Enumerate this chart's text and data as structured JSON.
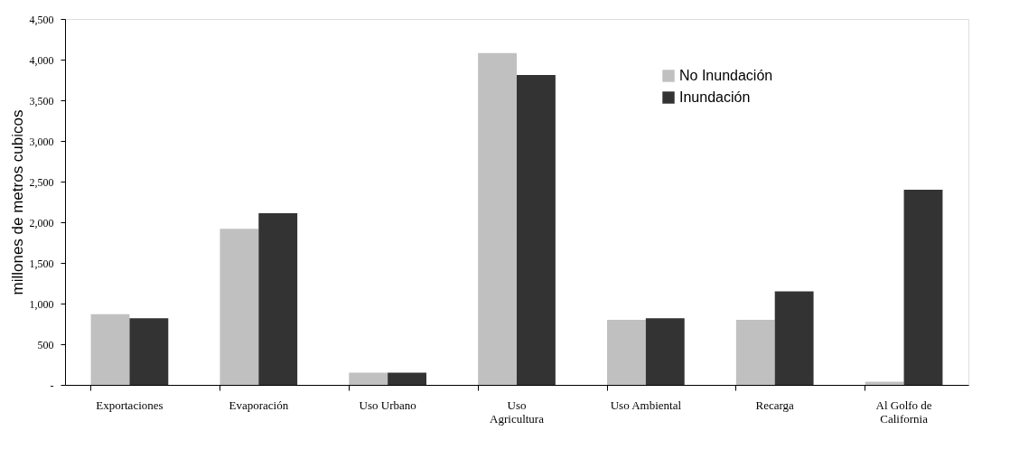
{
  "chart_data": {
    "type": "bar",
    "ylabel": "millones de metros cubicos",
    "categories": [
      "Exportaciones",
      "Evaporación",
      "Uso Urbano",
      "Uso Agricultura",
      "Uso Ambiental",
      "Recarga",
      "Al Golfo de California"
    ],
    "series": [
      {
        "name": "No Inundación",
        "color": "#c0c0c0",
        "values": [
          870,
          1920,
          150,
          4080,
          800,
          800,
          40
        ]
      },
      {
        "name": "Inundación",
        "color": "#333333",
        "values": [
          820,
          2110,
          150,
          3810,
          820,
          1150,
          2400
        ]
      }
    ],
    "ylim": [
      0,
      4500
    ],
    "yticks": [
      {
        "value": 0,
        "label": "-"
      },
      {
        "value": 500,
        "label": "500"
      },
      {
        "value": 1000,
        "label": "1,000"
      },
      {
        "value": 1500,
        "label": "1,500"
      },
      {
        "value": 2000,
        "label": "2,000"
      },
      {
        "value": 2500,
        "label": "2,500"
      },
      {
        "value": 3000,
        "label": "3,000"
      },
      {
        "value": 3500,
        "label": "3,500"
      },
      {
        "value": 4000,
        "label": "4,000"
      },
      {
        "value": 4500,
        "label": "4,500"
      }
    ],
    "grid": false,
    "legend": "top right"
  }
}
